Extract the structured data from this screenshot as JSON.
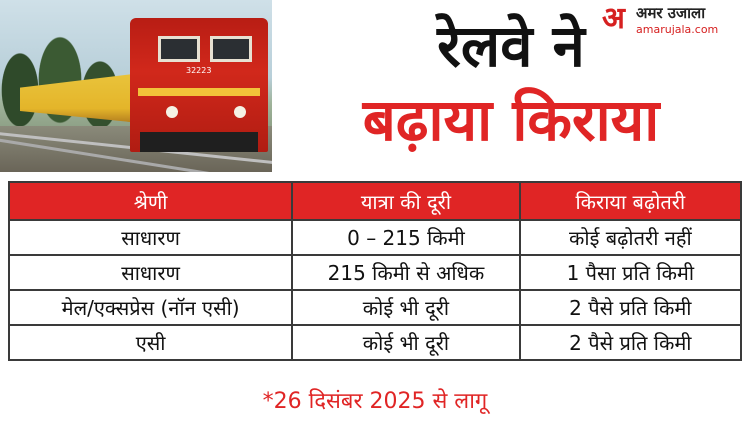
{
  "logo": {
    "glyph": "अ",
    "name": "अमर उजाला",
    "url": "amarujala.com",
    "color": "#d62020"
  },
  "headline": {
    "line1": "रेलवे ने",
    "line2": "बढ़ाया किराया",
    "line2_color": "#e02525"
  },
  "photo": {
    "locomotive_number": "32223"
  },
  "table": {
    "header_color": "#e02525",
    "headers": [
      "श्रेणी",
      "यात्रा की दूरी",
      "किराया बढ़ोतरी"
    ],
    "rows": [
      [
        "साधारण",
        "0 – 215 किमी",
        "कोई बढ़ोतरी नहीं"
      ],
      [
        "साधारण",
        "215 किमी से अधिक",
        "1 पैसा प्रति किमी"
      ],
      [
        "मेल/एक्सप्रेस (नॉन एसी)",
        "कोई भी दूरी",
        "2 पैसे प्रति किमी"
      ],
      [
        "एसी",
        "कोई भी दूरी",
        "2 पैसे प्रति किमी"
      ]
    ]
  },
  "footnote": "*26 दिसंबर 2025 से लागू"
}
